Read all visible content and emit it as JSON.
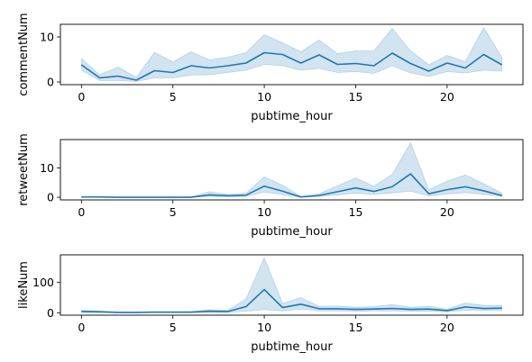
{
  "chart_data": [
    {
      "type": "line",
      "xlabel": "pubtime_hour",
      "ylabel": "commentNum",
      "xlim": [
        -1.15,
        24.15
      ],
      "ylim": [
        -0.6,
        12.8
      ],
      "x_ticks": [
        0,
        5,
        10,
        15,
        20
      ],
      "y_ticks": [
        0,
        10
      ],
      "colors": {
        "line": "#1f77b4",
        "band": "#1f77b4"
      },
      "series": [
        {
          "x": [
            0,
            1,
            2,
            3,
            4,
            5,
            6,
            7,
            8,
            9,
            10,
            11,
            12,
            13,
            14,
            15,
            16,
            17,
            18,
            19,
            20,
            21,
            22,
            23
          ],
          "y": [
            3.8,
            0.9,
            1.3,
            0.4,
            2.5,
            2.1,
            3.6,
            3.1,
            3.6,
            4.2,
            6.5,
            6.1,
            4.2,
            6.0,
            3.9,
            4.1,
            3.6,
            6.4,
            4.1,
            2.4,
            4.2,
            3.1,
            6.1,
            3.8
          ],
          "lower": [
            2.6,
            0.3,
            0.3,
            0.1,
            0.9,
            0.9,
            1.5,
            1.6,
            2.1,
            2.6,
            3.9,
            3.6,
            2.6,
            3.0,
            2.1,
            2.3,
            1.9,
            3.6,
            2.0,
            1.2,
            2.3,
            2.0,
            2.6,
            2.4
          ],
          "upper": [
            5.2,
            1.6,
            3.3,
            1.0,
            6.6,
            4.4,
            6.7,
            4.9,
            5.5,
            6.5,
            10.5,
            8.7,
            6.7,
            9.3,
            6.3,
            6.9,
            6.9,
            11.9,
            6.9,
            3.8,
            5.9,
            4.5,
            12.1,
            5.4
          ]
        }
      ]
    },
    {
      "type": "line",
      "xlabel": "pubtime_hour",
      "ylabel": "retweetNum",
      "xlim": [
        -1.15,
        24.15
      ],
      "ylim": [
        -0.9,
        19.7
      ],
      "x_ticks": [
        0,
        5,
        10,
        15,
        20
      ],
      "y_ticks": [
        0,
        10
      ],
      "colors": {
        "line": "#1f77b4",
        "band": "#1f77b4"
      },
      "series": [
        {
          "x": [
            0,
            1,
            2,
            3,
            4,
            5,
            6,
            7,
            8,
            9,
            10,
            11,
            12,
            13,
            14,
            15,
            16,
            17,
            18,
            19,
            20,
            21,
            22,
            23
          ],
          "y": [
            0.1,
            0.1,
            0.0,
            0.0,
            0.0,
            0.0,
            0.0,
            0.8,
            0.5,
            0.7,
            3.8,
            2.1,
            0.1,
            0.6,
            1.9,
            3.2,
            2.0,
            3.6,
            8.0,
            1.2,
            2.6,
            3.6,
            2.2,
            0.6
          ],
          "lower": [
            0.0,
            0.0,
            0.0,
            0.0,
            0.0,
            0.0,
            0.0,
            0.3,
            0.2,
            0.3,
            1.8,
            0.9,
            0.0,
            0.3,
            0.8,
            1.4,
            0.9,
            1.5,
            2.1,
            0.5,
            1.1,
            1.6,
            1.0,
            0.3
          ],
          "upper": [
            0.3,
            0.3,
            0.1,
            0.1,
            0.1,
            0.1,
            0.1,
            1.9,
            1.0,
            1.4,
            7.0,
            4.1,
            0.3,
            1.2,
            3.9,
            6.6,
            3.8,
            7.8,
            18.6,
            2.6,
            5.5,
            7.6,
            4.6,
            1.4
          ]
        }
      ]
    },
    {
      "type": "line",
      "xlabel": "pubtime_hour",
      "ylabel": "likeNum",
      "xlim": [
        -1.15,
        24.15
      ],
      "ylim": [
        -8,
        190
      ],
      "x_ticks": [
        0,
        5,
        10,
        15,
        20
      ],
      "y_ticks": [
        0,
        100
      ],
      "colors": {
        "line": "#1f77b4",
        "band": "#1f77b4"
      },
      "series": [
        {
          "x": [
            0,
            1,
            2,
            3,
            4,
            5,
            6,
            7,
            8,
            9,
            10,
            11,
            12,
            13,
            14,
            15,
            16,
            17,
            18,
            19,
            20,
            21,
            22,
            23
          ],
          "y": [
            4,
            3,
            1,
            1,
            2,
            2,
            2,
            5,
            4,
            20,
            76,
            17,
            28,
            13,
            13,
            11,
            12,
            14,
            11,
            12,
            7,
            19,
            14,
            15
          ],
          "lower": [
            1,
            1,
            0,
            0,
            0,
            0,
            0,
            1,
            1,
            5,
            10,
            6,
            12,
            6,
            6,
            5,
            6,
            6,
            5,
            5,
            3,
            8,
            7,
            8
          ],
          "upper": [
            8,
            6,
            2,
            2,
            4,
            4,
            4,
            10,
            8,
            45,
            181,
            30,
            50,
            21,
            22,
            18,
            20,
            27,
            18,
            21,
            12,
            32,
            24,
            24
          ]
        }
      ]
    }
  ]
}
